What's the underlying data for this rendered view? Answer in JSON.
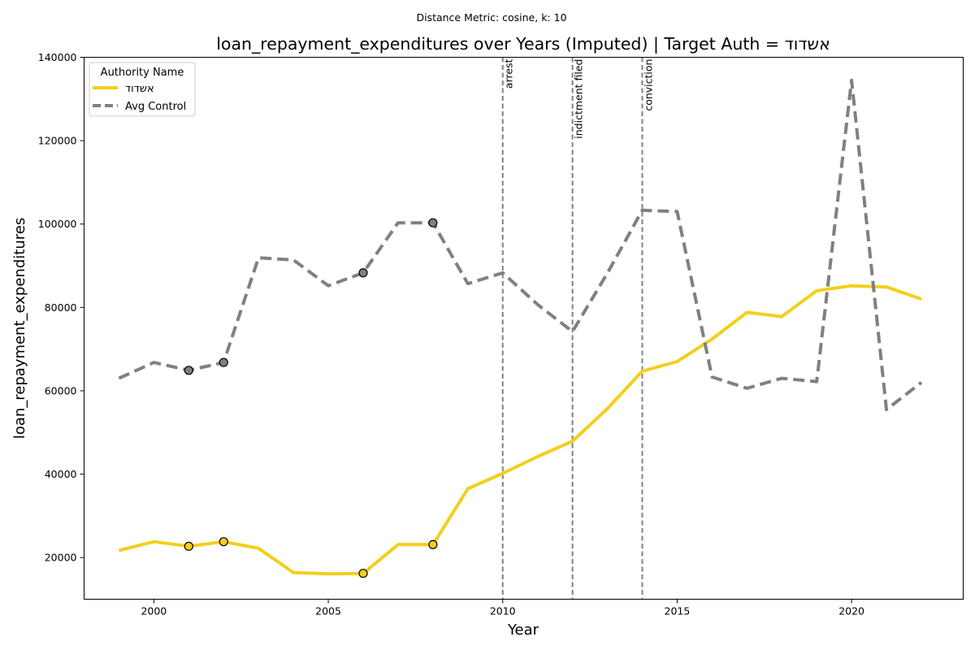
{
  "chart_data": {
    "type": "line",
    "suptitle": "Distance Metric: cosine, k: 10",
    "title": "loan_repayment_expenditures over Years (Imputed) | Target Auth = אשדוד",
    "xlabel": "Year",
    "ylabel": "loan_repayment_expenditures",
    "xlim": [
      1998,
      2023.2
    ],
    "ylim": [
      10000,
      140000
    ],
    "x_ticks": [
      2000,
      2005,
      2010,
      2015,
      2020
    ],
    "y_ticks": [
      20000,
      40000,
      60000,
      80000,
      100000,
      120000,
      140000
    ],
    "grid": false,
    "legend": {
      "title": "Authority Name",
      "placement": "upper-left"
    },
    "x": [
      1999,
      2000,
      2001,
      2002,
      2003,
      2004,
      2005,
      2006,
      2007,
      2008,
      2009,
      2010,
      2011,
      2012,
      2013,
      2014,
      2015,
      2016,
      2017,
      2018,
      2019,
      2020,
      2021,
      2022
    ],
    "series": [
      {
        "name": "אשדוד",
        "color": "#f2cf1d",
        "style": "solid",
        "values": [
          21700,
          23800,
          22700,
          23800,
          22200,
          16400,
          16100,
          16200,
          23100,
          23100,
          36500,
          40200,
          44200,
          47900,
          55700,
          64700,
          67000,
          72400,
          78800,
          77800,
          84000,
          85200,
          84900,
          82000
        ],
        "imputed_x": [
          2001,
          2002,
          2006,
          2008
        ]
      },
      {
        "name": "Avg Control",
        "color": "#808080",
        "style": "dashed",
        "values": [
          63000,
          66800,
          64900,
          66800,
          91900,
          91400,
          85200,
          88300,
          100300,
          100300,
          85700,
          88300,
          80700,
          74200,
          88200,
          103300,
          103000,
          63300,
          60600,
          63000,
          62200,
          134500,
          55500,
          62000
        ],
        "imputed_x": [
          2001,
          2002,
          2006,
          2008
        ]
      }
    ],
    "events": [
      {
        "x": 2010,
        "label": "arrest"
      },
      {
        "x": 2012,
        "label": "indictment filed"
      },
      {
        "x": 2014,
        "label": "conviction"
      }
    ]
  }
}
